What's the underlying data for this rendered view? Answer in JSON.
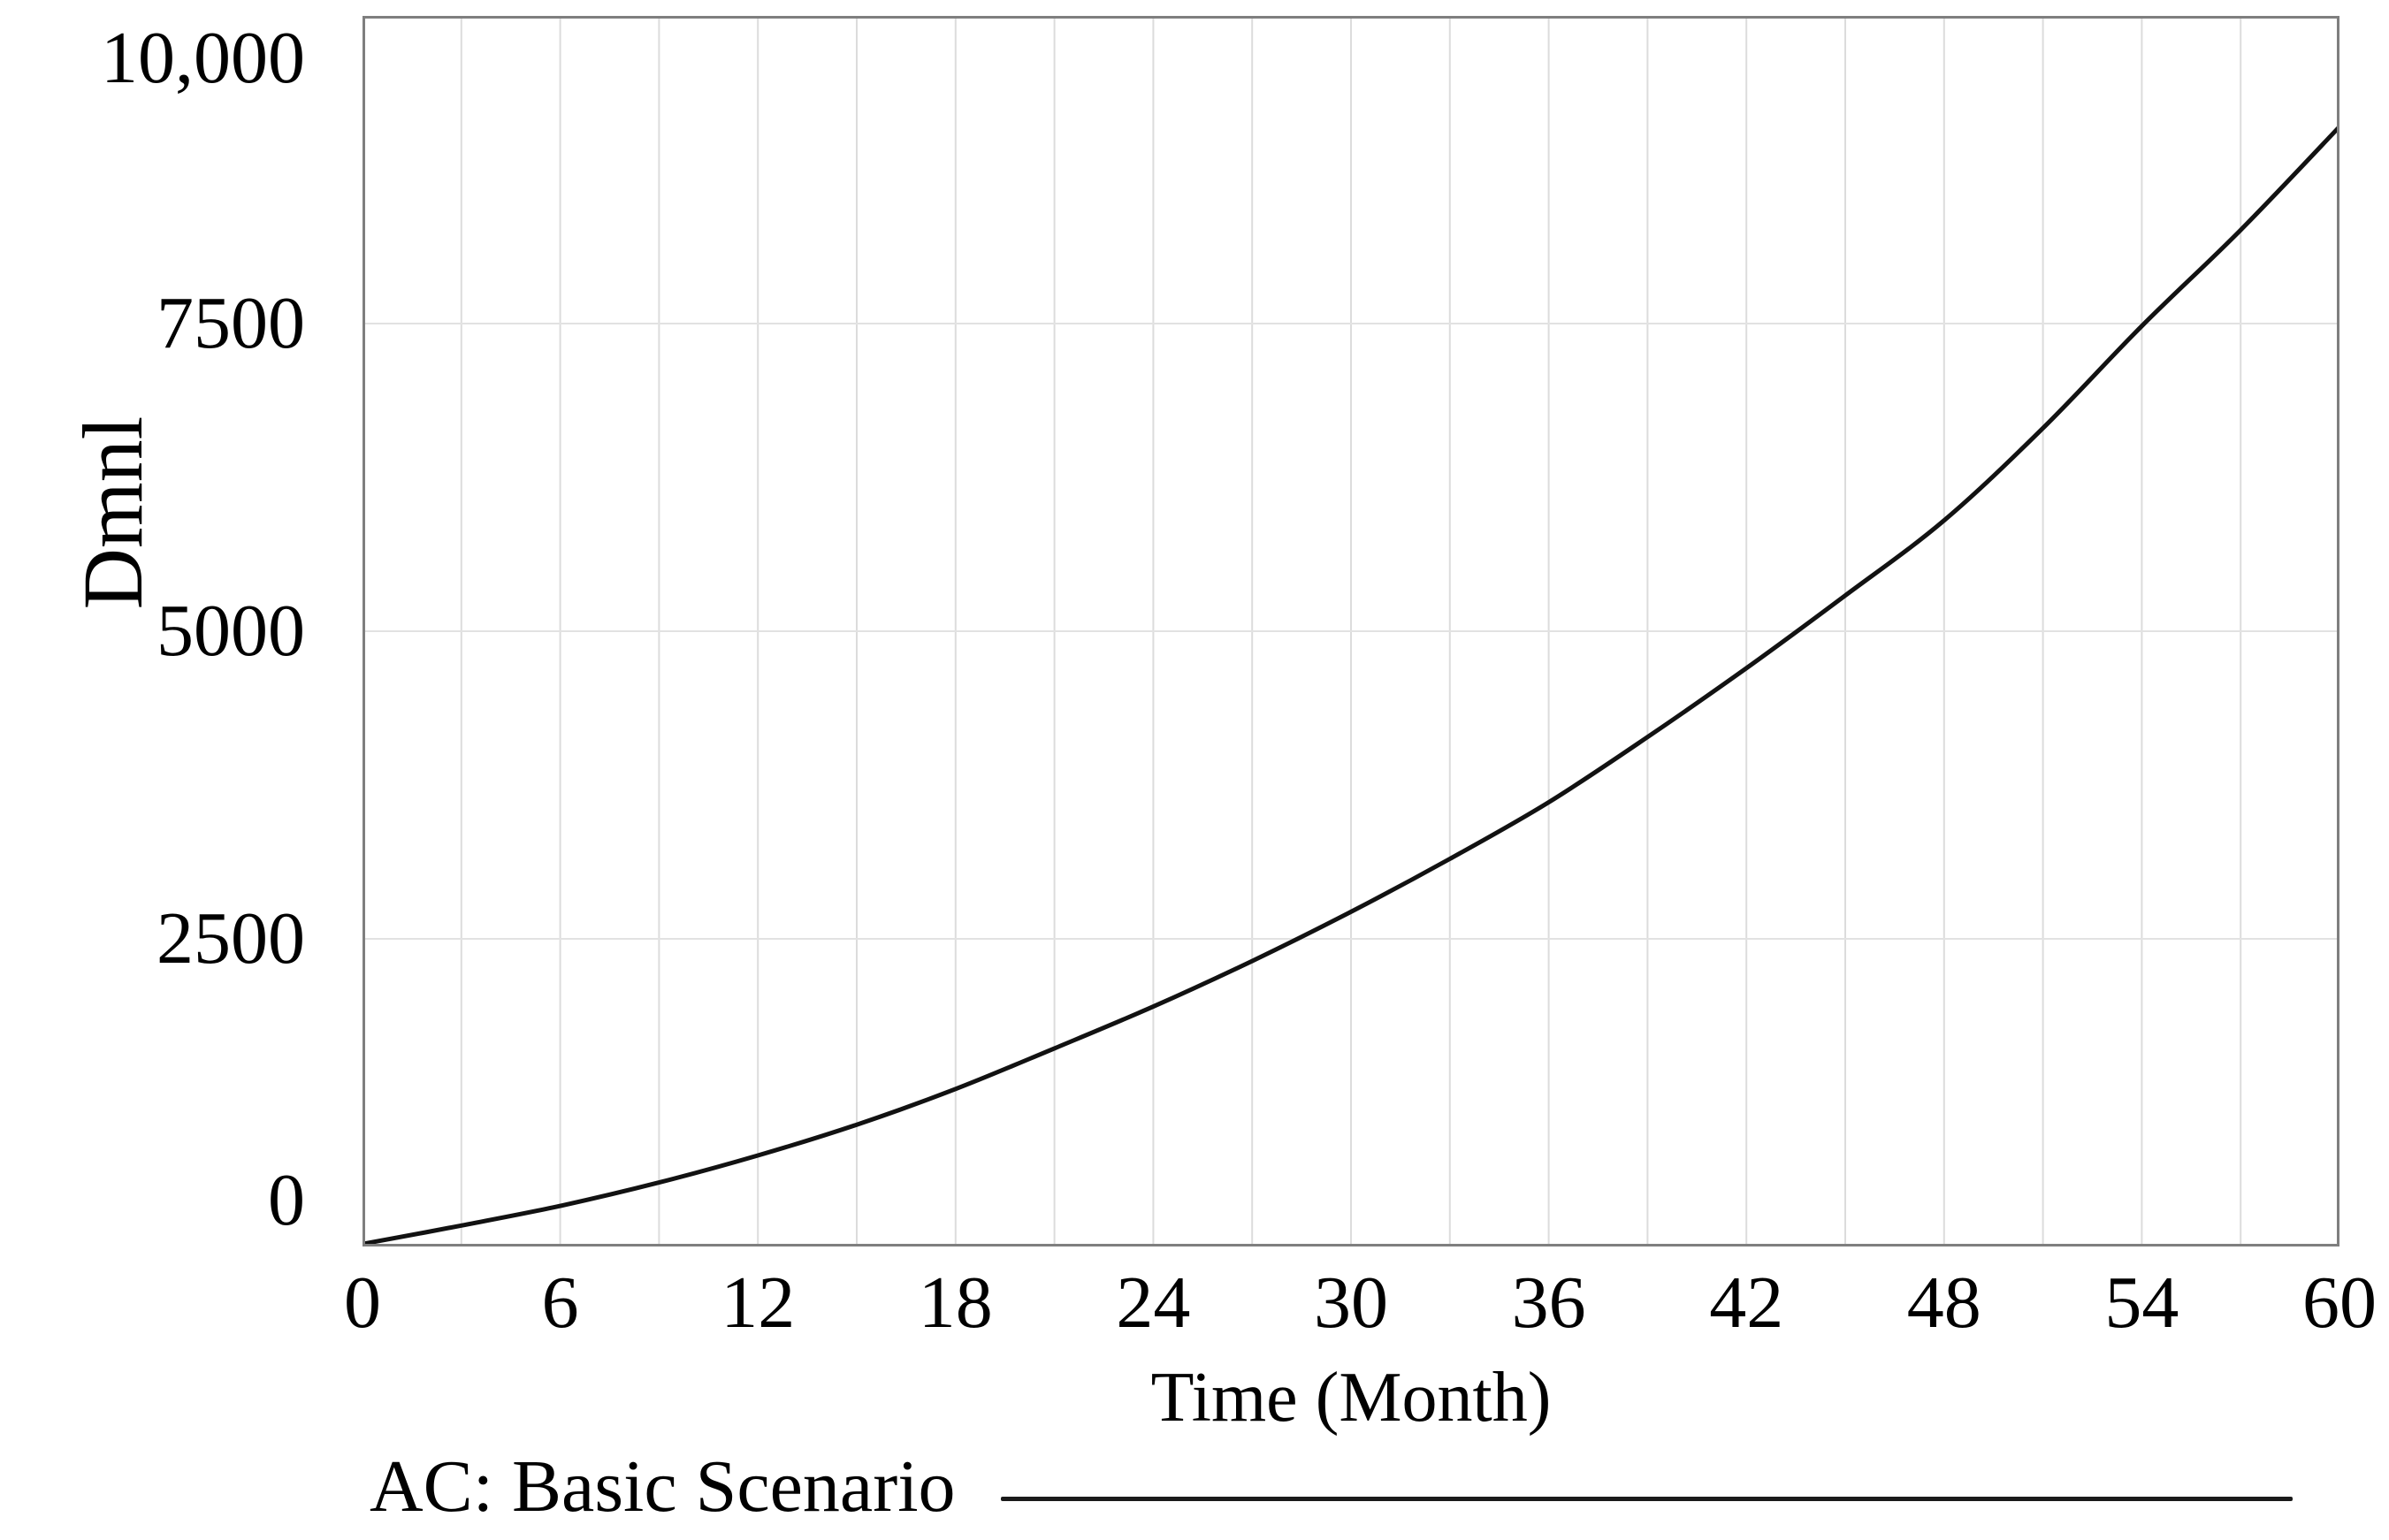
{
  "figure": {
    "background": "#ffffff",
    "border_color": "#7f7f7f",
    "grid_color_vertical": "#dcdcdc",
    "grid_color_horizontal": "#e2e2e2",
    "line_color": "#121212",
    "text_color": "#000000"
  },
  "chart_data": {
    "type": "line",
    "title": "",
    "xlabel": "Time (Month)",
    "ylabel": "Dmnl",
    "xlim": [
      0,
      60
    ],
    "ylim": [
      0,
      10000
    ],
    "grid": "on",
    "x_ticks": [
      0,
      6,
      12,
      18,
      24,
      30,
      36,
      42,
      48,
      54,
      60
    ],
    "x_tick_labels": [
      "0",
      "6",
      "12",
      "18",
      "24",
      "30",
      "36",
      "42",
      "48",
      "54",
      "60"
    ],
    "y_ticks": [
      0,
      2500,
      5000,
      7500,
      10000
    ],
    "y_tick_labels": [
      "0",
      "2500",
      "5000",
      "7500",
      "10,000"
    ],
    "minor_vertical_grid_step_months": 3,
    "x": [
      0,
      3,
      6,
      9,
      12,
      15,
      18,
      21,
      24,
      27,
      30,
      33,
      36,
      39,
      42,
      45,
      48,
      51,
      54,
      57,
      60
    ],
    "series": [
      {
        "name": "AC: Basic Scenario",
        "values": [
          20,
          170,
          330,
          520,
          740,
          990,
          1280,
          1610,
          1950,
          2320,
          2720,
          3150,
          3610,
          4140,
          4700,
          5290,
          5900,
          6650,
          7480,
          8260,
          9100
        ]
      }
    ],
    "legend": {
      "position": "bottom-left",
      "entries": [
        {
          "label": "AC: Basic Scenario",
          "line_style": "solid",
          "color": "#1a1a1a"
        }
      ]
    }
  }
}
